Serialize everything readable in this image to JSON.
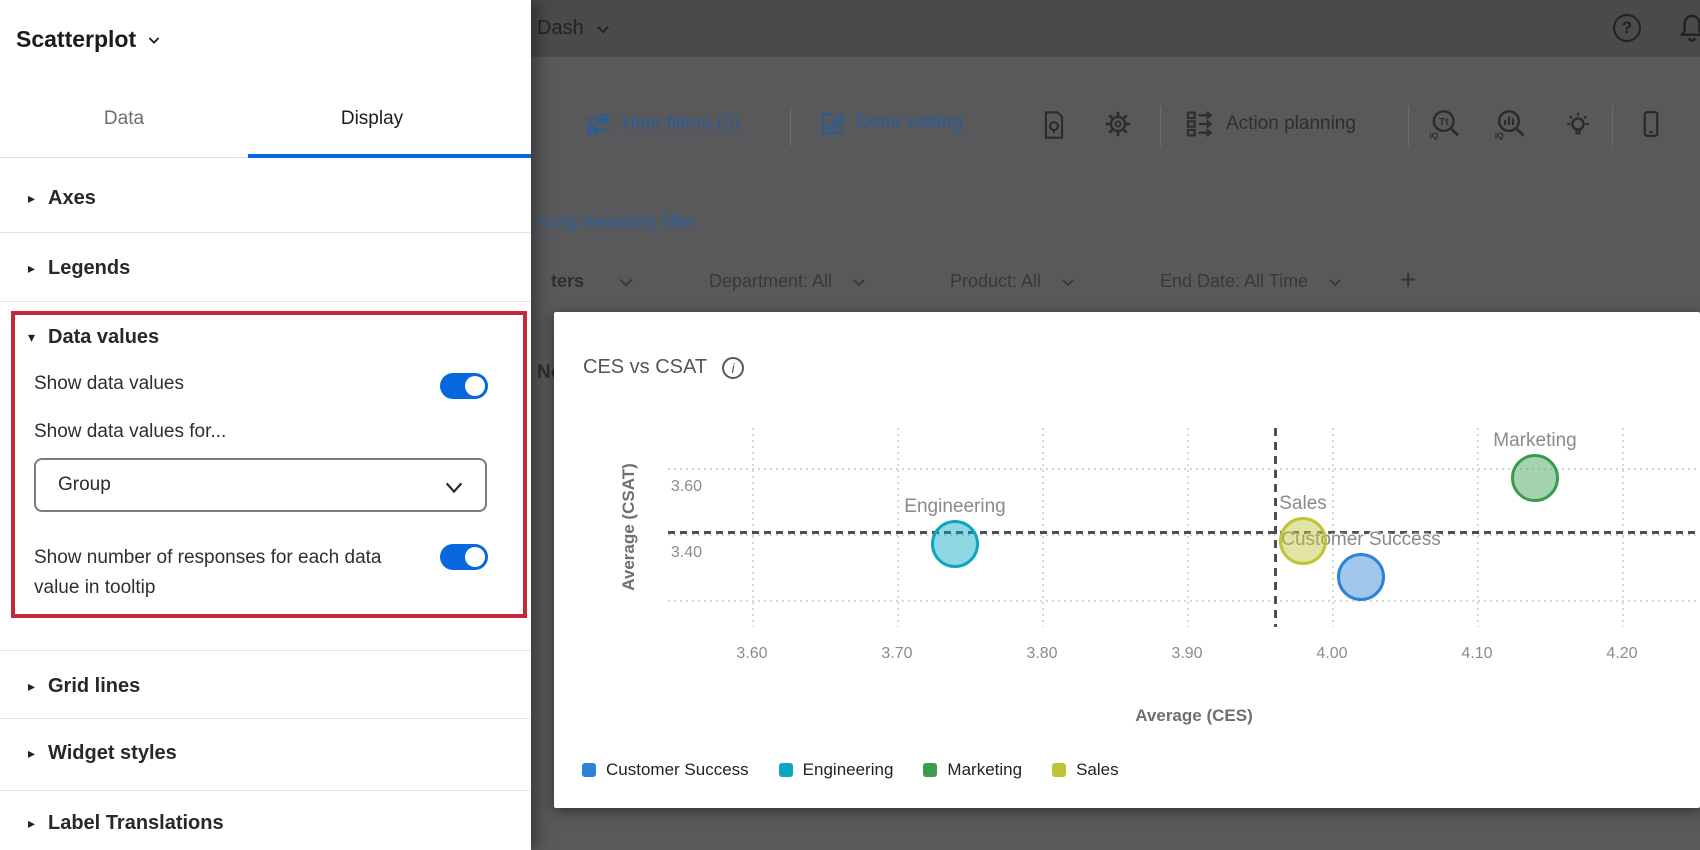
{
  "accent_blue": "#0768dd",
  "highlight_red": "#c3293b",
  "panel": {
    "title": "Scatterplot",
    "tabs": [
      {
        "label": "Data",
        "active": false
      },
      {
        "label": "Display",
        "active": true
      }
    ],
    "sections": [
      {
        "label": "Axes"
      },
      {
        "label": "Legends"
      },
      {
        "label": "Data values"
      },
      {
        "label": "Grid lines"
      },
      {
        "label": "Widget styles"
      },
      {
        "label": "Label Translations"
      }
    ],
    "data_values": {
      "show_data_values_label": "Show data values",
      "show_data_values_on": true,
      "show_for_label": "Show data values for...",
      "dropdown_value": "Group",
      "responses_label": "Show number of responses for each data value in tooltip",
      "responses_on": true
    }
  },
  "topbar": {
    "breadcrumb": "Dash",
    "help_glyph": "?"
  },
  "toolbar": {
    "hide_filters": "Hide filters (3)",
    "done_editing": "Done editing",
    "action_planning": "Action planning",
    "text_iq_glyph": "Tt",
    "iq_glyph": "iQ"
  },
  "dashboard": {
    "org_link_partial": "n org hierarchy filter",
    "widget_text_partial": "No",
    "filters_partial_label": "ters",
    "filters": [
      {
        "label": "Department: All"
      },
      {
        "label": "Product: All"
      },
      {
        "label": "End Date: All Time"
      }
    ],
    "add_filter": "+"
  },
  "chart_data": {
    "type": "scatter",
    "title": "CES vs CSAT",
    "info_glyph": "i",
    "xlabel": "Average (CES)",
    "ylabel": "Average (CSAT)",
    "x_ticks": [
      "3.60",
      "3.70",
      "3.80",
      "3.90",
      "4.00",
      "4.10",
      "4.20"
    ],
    "y_ticks": [
      {
        "label": "3.60",
        "value": 3.6
      },
      {
        "label": "3.40",
        "value": 3.4
      }
    ],
    "y_gridlines": [
      3.6,
      3.4,
      3.2
    ],
    "xlim": [
      3.54,
      4.26
    ],
    "ylim": [
      3.12,
      3.72
    ],
    "grid": true,
    "legend_position": "bottom",
    "average_lines": {
      "x": 3.96,
      "y": 3.41
    },
    "series": [
      {
        "name": "Customer Success",
        "color": "#2e82d6",
        "ces": 4.02,
        "csat": 3.27
      },
      {
        "name": "Engineering",
        "color": "#09a7c3",
        "ces": 3.74,
        "csat": 3.37
      },
      {
        "name": "Marketing",
        "color": "#3a9d4e",
        "ces": 4.14,
        "csat": 3.57
      },
      {
        "name": "Sales",
        "color": "#bec433",
        "ces": 3.98,
        "csat": 3.38
      }
    ]
  }
}
